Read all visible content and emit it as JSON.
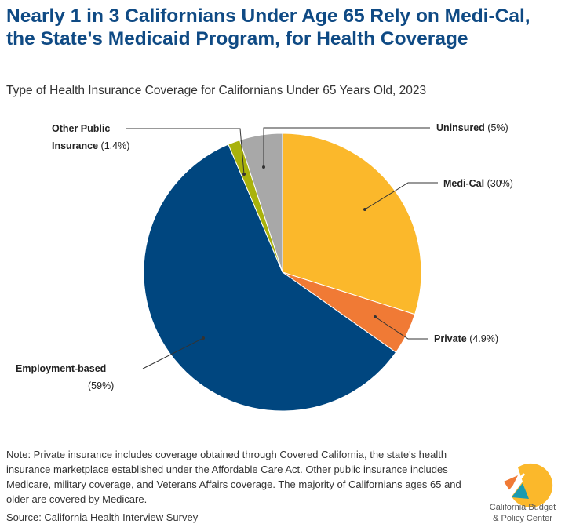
{
  "title": "Nearly 1 in 3 Californians Under Age 65 Rely on Medi-Cal, the State's Medicaid Program, for Health Coverage",
  "chart_data": {
    "type": "pie",
    "title": "Type of Health Insurance Coverage for Californians Under 65 Years Old, 2023",
    "start": "top, clockwise",
    "slices": [
      {
        "label": "Medi-Cal",
        "value_label": "(30%)",
        "value": 30,
        "color": "#fbb82b"
      },
      {
        "label": "Private",
        "value_label": "(4.9%)",
        "value": 4.9,
        "color": "#f07a35"
      },
      {
        "label": "Employment-based",
        "value_label": "(59%)",
        "value": 59,
        "color": "#00467f"
      },
      {
        "label": "Other Public Insurance",
        "label_line1": "Other Public",
        "label_line2": "Insurance",
        "value_label": "(1.4%)",
        "value": 1.4,
        "color": "#a9b20c"
      },
      {
        "label": "Uninsured",
        "value_label": "(5%)",
        "value": 5,
        "color": "#a8a8a8"
      }
    ]
  },
  "note": "Note: Private insurance includes coverage obtained through Covered California, the state's health insurance marketplace established under the Affordable Care Act. Other public insurance includes Medicare, military coverage, and Veterans Affairs coverage. The majority of Californians ages 65 and older are covered by Medicare.",
  "source": "Source: California Health Interview Survey",
  "logo": {
    "line1": "California Budget",
    "line2": "& Policy Center"
  }
}
